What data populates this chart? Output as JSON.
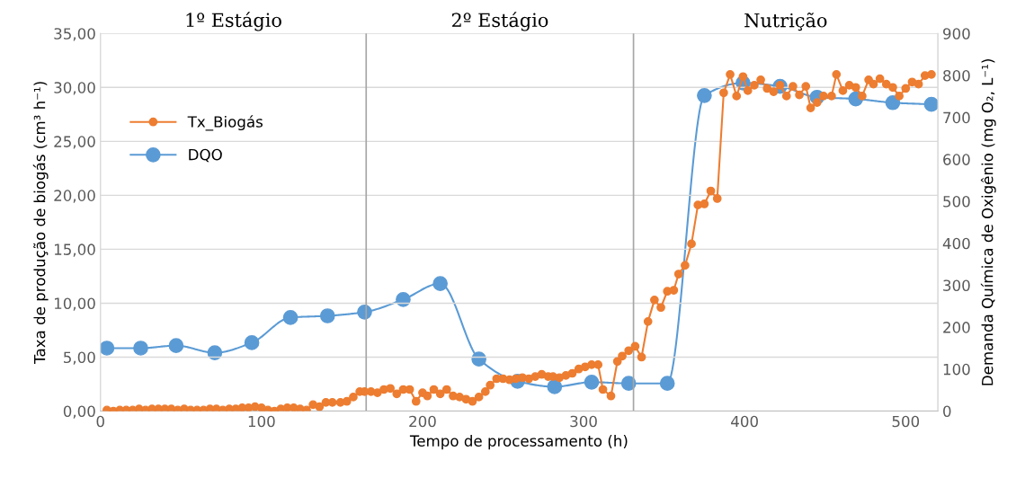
{
  "chart_data": {
    "type": "line",
    "xlabel": "Tempo de processamento (h)",
    "ylabel": "Taxa de produção de biogás (cm³ h⁻¹)",
    "y2label": "Demanda Química de Oxigênio (mg O₂, L⁻¹)",
    "xlim": [
      0,
      520
    ],
    "xticks": [
      0,
      100,
      200,
      300,
      400,
      500
    ],
    "ylim": [
      0,
      35
    ],
    "yticks": [
      {
        "value": 0,
        "label": "0,00"
      },
      {
        "value": 5,
        "label": "5,00"
      },
      {
        "value": 10,
        "label": "10,00"
      },
      {
        "value": 15,
        "label": "15,00"
      },
      {
        "value": 20,
        "label": "20,00"
      },
      {
        "value": 25,
        "label": "25,00"
      },
      {
        "value": 30,
        "label": "30,00"
      },
      {
        "value": 35,
        "label": "35,00"
      }
    ],
    "y2lim": [
      0,
      900
    ],
    "y2ticks": [
      0,
      100,
      200,
      300,
      400,
      500,
      600,
      700,
      800,
      900
    ],
    "grid": "y",
    "legend": "left",
    "marker": "circle",
    "line_style": "solid",
    "ref_lines": [
      {
        "axis": "x",
        "value": 165,
        "color": "#a6a6a6"
      },
      {
        "axis": "x",
        "value": 331,
        "color": "#a6a6a6"
      }
    ],
    "annotations": [
      "1º Estágio",
      "2º Estágio",
      "Nutrição"
    ],
    "series": [
      {
        "name": "Tx_Biogás",
        "color": "#ed7d31",
        "axis": "y",
        "x": [
          4,
          8,
          12,
          16,
          20,
          24,
          28,
          32,
          36,
          40,
          44,
          48,
          52,
          56,
          60,
          64,
          68,
          72,
          76,
          80,
          84,
          88,
          92,
          96,
          100,
          104,
          108,
          112,
          116,
          120,
          124,
          128,
          132,
          136,
          140,
          144,
          149,
          153,
          157,
          161,
          164,
          168,
          172,
          176,
          180,
          184,
          188,
          192,
          196,
          200,
          203,
          207,
          211,
          215,
          219,
          223,
          227,
          231,
          235,
          239,
          242,
          246,
          250,
          254,
          258,
          262,
          266,
          270,
          274,
          278,
          281,
          285,
          289,
          293,
          297,
          301,
          305,
          309,
          312,
          317,
          321,
          324,
          328,
          332,
          336,
          340,
          344,
          348,
          352,
          356,
          359,
          363,
          367,
          371,
          375,
          379,
          383,
          387,
          391,
          395,
          399,
          402,
          406,
          410,
          414,
          418,
          422,
          426,
          430,
          434,
          438,
          441,
          445,
          449,
          454,
          457,
          461,
          465,
          469,
          473,
          477,
          480,
          484,
          488,
          492,
          496,
          500,
          504,
          508,
          512,
          516
        ],
        "values": [
          0.1,
          0.0,
          0.1,
          0.1,
          0.1,
          0.2,
          0.1,
          0.2,
          0.2,
          0.2,
          0.2,
          0.1,
          0.2,
          0.1,
          0.1,
          0.1,
          0.2,
          0.2,
          0.1,
          0.2,
          0.2,
          0.3,
          0.3,
          0.4,
          0.3,
          0.1,
          0.0,
          0.2,
          0.3,
          0.3,
          0.2,
          0.1,
          0.6,
          0.4,
          0.8,
          0.8,
          0.8,
          0.9,
          1.3,
          1.8,
          1.8,
          1.8,
          1.7,
          2.0,
          2.1,
          1.6,
          2.0,
          2.0,
          0.9,
          1.7,
          1.4,
          2.0,
          1.6,
          2.0,
          1.4,
          1.3,
          1.1,
          0.9,
          1.3,
          1.8,
          2.4,
          3.0,
          3.0,
          2.9,
          3.0,
          3.1,
          3.0,
          3.2,
          3.4,
          3.2,
          3.2,
          3.1,
          3.3,
          3.5,
          3.9,
          4.1,
          4.3,
          4.3,
          2.0,
          1.4,
          4.6,
          5.1,
          5.6,
          6.0,
          5.0,
          8.3,
          10.3,
          9.6,
          11.1,
          11.2,
          12.7,
          13.5,
          15.5,
          19.1,
          19.2,
          20.4,
          19.7,
          29.5,
          31.2,
          29.2,
          31.0,
          29.7,
          30.2,
          30.7,
          29.9,
          29.6,
          30.2,
          29.2,
          30.1,
          29.3,
          30.1,
          28.1,
          28.6,
          29.2,
          29.2,
          31.2,
          29.7,
          30.2,
          30.0,
          29.2,
          30.7,
          30.3,
          30.8,
          30.3,
          30.0,
          29.2,
          29.9,
          30.5,
          30.3,
          31.1,
          31.2
        ]
      },
      {
        "name": "DQO",
        "color": "#5b9bd5",
        "axis": "y2",
        "x": [
          4,
          25,
          47,
          71,
          94,
          118,
          141,
          164,
          188,
          211,
          235,
          259,
          282,
          305,
          328,
          352,
          375,
          399,
          422,
          445,
          469,
          492,
          516
        ],
        "values": [
          150,
          150,
          156,
          139,
          163,
          223,
          227,
          236,
          266,
          304,
          124,
          71,
          58,
          69,
          66,
          66,
          752,
          782,
          774,
          748,
          744,
          735,
          731
        ]
      }
    ]
  }
}
